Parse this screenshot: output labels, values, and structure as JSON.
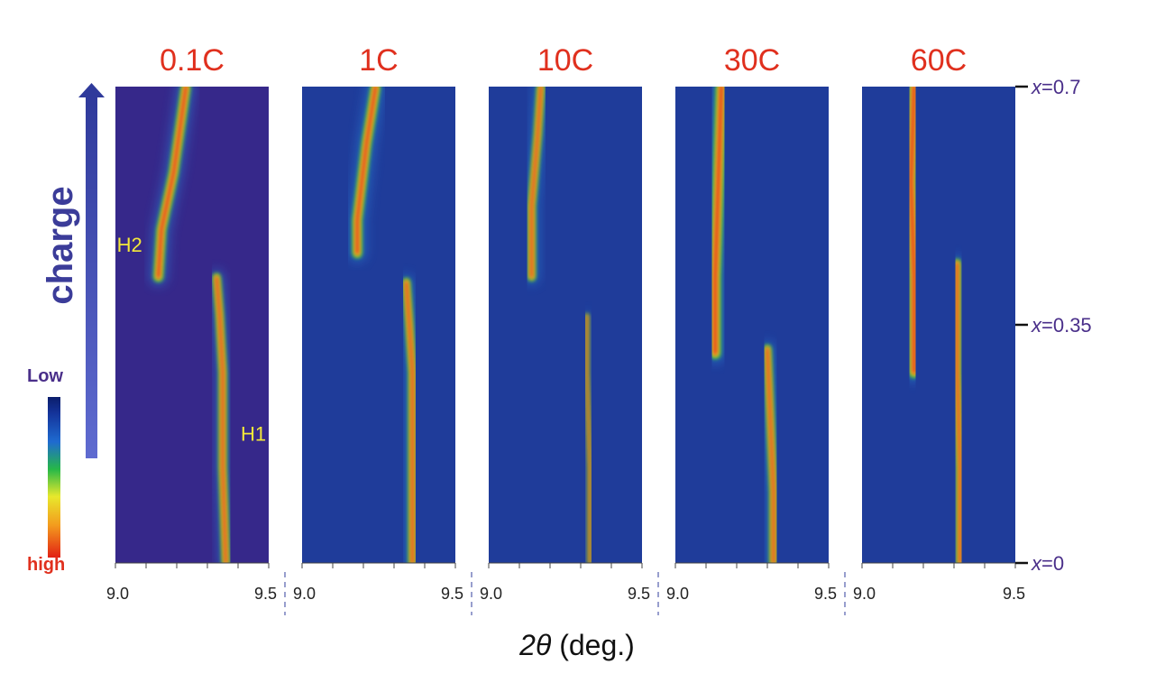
{
  "chart_data": {
    "type": "heatmap",
    "panels": [
      {
        "title": "0.1C",
        "ridges": [
          {
            "label": "H1",
            "points": [
              [
                9.36,
                0.0
              ],
              [
                9.35,
                0.2
              ],
              [
                9.35,
                0.4
              ],
              [
                9.34,
                0.52
              ],
              [
                9.33,
                0.6
              ]
            ],
            "w": 0.018
          },
          {
            "label": "H2",
            "points": [
              [
                9.14,
                0.6
              ],
              [
                9.15,
                0.7
              ],
              [
                9.19,
                0.82
              ],
              [
                9.23,
                1.0
              ]
            ],
            "w": 0.022
          }
        ]
      },
      {
        "title": "1C",
        "ridges": [
          {
            "label": "",
            "points": [
              [
                9.36,
                0.0
              ],
              [
                9.36,
                0.2
              ],
              [
                9.36,
                0.4
              ],
              [
                9.35,
                0.5
              ],
              [
                9.34,
                0.59
              ]
            ],
            "w": 0.018
          },
          {
            "label": "",
            "points": [
              [
                9.18,
                0.65
              ],
              [
                9.18,
                0.72
              ],
              [
                9.21,
                0.88
              ],
              [
                9.24,
                1.0
              ]
            ],
            "w": 0.022
          }
        ]
      },
      {
        "title": "10C",
        "ridges": [
          {
            "label": "",
            "points": [
              [
                9.33,
                0.0
              ],
              [
                9.33,
                0.2
              ],
              [
                9.32,
                0.4
              ],
              [
                9.32,
                0.52
              ]
            ],
            "w": 0.008
          },
          {
            "label": "",
            "points": [
              [
                9.14,
                0.6
              ],
              [
                9.14,
                0.75
              ],
              [
                9.16,
                0.9
              ],
              [
                9.17,
                1.0
              ]
            ],
            "w": 0.018
          }
        ]
      },
      {
        "title": "30C",
        "ridges": [
          {
            "label": "",
            "points": [
              [
                9.32,
                0.0
              ],
              [
                9.32,
                0.15
              ],
              [
                9.31,
                0.3
              ],
              [
                9.3,
                0.45
              ]
            ],
            "w": 0.018
          },
          {
            "label": "",
            "points": [
              [
                9.13,
                0.44
              ],
              [
                9.13,
                0.6
              ],
              [
                9.14,
                0.8
              ],
              [
                9.15,
                1.0
              ]
            ],
            "w": 0.025
          }
        ]
      },
      {
        "title": "60C",
        "ridges": [
          {
            "label": "",
            "points": [
              [
                9.32,
                0.0
              ],
              [
                9.32,
                0.2
              ],
              [
                9.31,
                0.4
              ],
              [
                9.31,
                0.63
              ]
            ],
            "w": 0.018
          },
          {
            "label": "",
            "points": [
              [
                9.17,
                0.4
              ],
              [
                9.17,
                0.6
              ],
              [
                9.16,
                0.8
              ],
              [
                9.17,
                1.0
              ]
            ],
            "w": 0.025
          }
        ]
      }
    ],
    "x_range": [
      9.0,
      9.5
    ],
    "x_ticks": [
      "9.0",
      "9.5"
    ],
    "xlabel_var": "2θ",
    "xlabel_unit": " (deg.)",
    "y_ticks": [
      "x=0",
      "x=0.35",
      "x=0.7"
    ],
    "y_tick_vars": [
      "x",
      "x",
      "x"
    ],
    "y_tick_vals": [
      "=0",
      "=0.35",
      "=0.7"
    ],
    "y_values": [
      0,
      0.35,
      0.7
    ],
    "side_label": "charge",
    "colorbar": {
      "low": "Low",
      "high": "high"
    },
    "colors": {
      "background": "#36288a",
      "panel_bg": "#1f3c9a",
      "title": "#e0301e"
    }
  }
}
